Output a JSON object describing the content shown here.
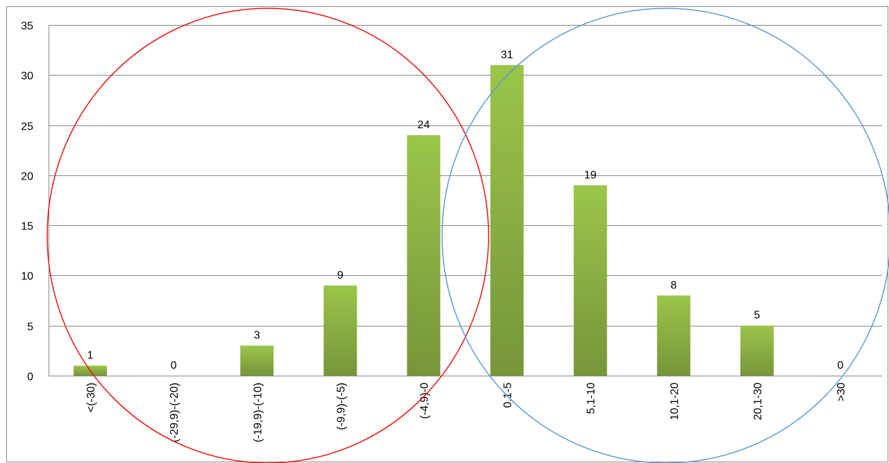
{
  "chart_data": {
    "type": "bar",
    "categories": [
      "<(-30)",
      "(-29,9)-(-20)",
      "(-19,9)-(-10)",
      "(-9,9)-(-5)",
      "(-4,9)-0",
      "0,1-5",
      "5,1-10",
      "10,1-20",
      "20,1-30",
      ">30"
    ],
    "values": [
      1,
      0,
      3,
      9,
      24,
      31,
      19,
      8,
      5,
      0
    ],
    "data_labels": [
      "1",
      "0",
      "3",
      "9",
      "24",
      "31",
      "19",
      "8",
      "5",
      "0"
    ],
    "y_ticks": [
      "0",
      "5",
      "10",
      "15",
      "20",
      "25",
      "30",
      "35"
    ],
    "ylim": [
      0,
      35
    ],
    "grid": true,
    "legend": "none",
    "title": "",
    "xlabel": "",
    "ylabel": "",
    "colors": {
      "bar_top": "#9bc54a",
      "bar_bottom": "#76953a",
      "grid": "#868686",
      "frame": "#868686",
      "circle_left": "#e8130f",
      "circle_right": "#5b9bd5"
    },
    "annotations": [
      {
        "type": "circle-outline",
        "color_key": "circle_left"
      },
      {
        "type": "circle-outline",
        "color_key": "circle_right"
      }
    ]
  }
}
